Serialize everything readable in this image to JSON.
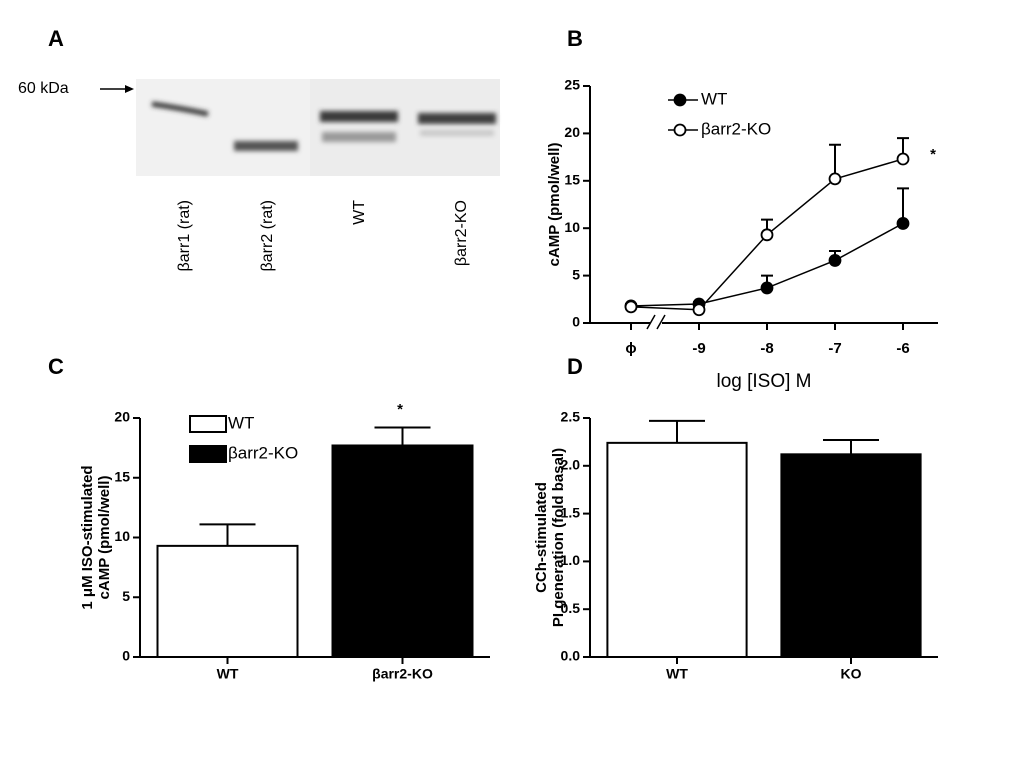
{
  "blot": {
    "label": "A",
    "marker": "60 kDa",
    "lanes": [
      "βarr1 (rat)",
      "βarr2 (rat)",
      "WT",
      "βarr2-KO"
    ]
  },
  "chart_data": [
    {
      "type": "line",
      "title": "B",
      "xlabel": "log [ISO] M",
      "ylabel": "cAMP (pmol/well)",
      "categories": [
        "ϕ",
        "-9",
        "-8",
        "-7",
        "-6"
      ],
      "ylim": [
        0,
        25
      ],
      "yticks": [
        0,
        5,
        10,
        15,
        20,
        25
      ],
      "legend": "upper left",
      "annotation": "*",
      "series": [
        {
          "name": "WT",
          "color": "#000000",
          "values": [
            1.8,
            2.0,
            3.7,
            6.6,
            10.5
          ],
          "errors": [
            0.2,
            0.2,
            1.3,
            1.0,
            3.7
          ]
        },
        {
          "name": "βarr2-KO",
          "color": "#ffffff",
          "values": [
            1.7,
            1.4,
            9.3,
            15.2,
            17.3
          ],
          "errors": [
            0.2,
            0.2,
            1.6,
            3.6,
            2.2
          ]
        }
      ]
    },
    {
      "type": "bar",
      "title": "C",
      "ylabel": [
        "1 μM ISO-stimulated",
        "cAMP (pmol/well)"
      ],
      "categories": [
        "WT",
        "βarr2-KO"
      ],
      "values": [
        9.3,
        17.7
      ],
      "errors": [
        1.8,
        1.5
      ],
      "colors": [
        "#ffffff",
        "#000000"
      ],
      "ylim": [
        0,
        20
      ],
      "yticks": [
        0,
        5,
        10,
        15,
        20
      ],
      "legend": "upper left",
      "annotation": "*"
    },
    {
      "type": "bar",
      "title": "D",
      "ylabel": [
        "CCh-stimulated",
        "PI generation (fold basal)"
      ],
      "categories": [
        "WT",
        "KO"
      ],
      "values": [
        2.24,
        2.12
      ],
      "errors": [
        0.23,
        0.15
      ],
      "colors": [
        "#ffffff",
        "#000000"
      ],
      "ylim": [
        0,
        2.5
      ],
      "yticks": [
        {
          "value": 0,
          "label": "0.0"
        },
        {
          "value": 0.5,
          "label": "0.5"
        },
        {
          "value": 1,
          "label": "1.0"
        },
        {
          "value": 1.5,
          "label": "1.5"
        },
        {
          "value": 2,
          "label": "2.0"
        },
        {
          "value": 2.5,
          "label": "2.5"
        }
      ]
    }
  ]
}
